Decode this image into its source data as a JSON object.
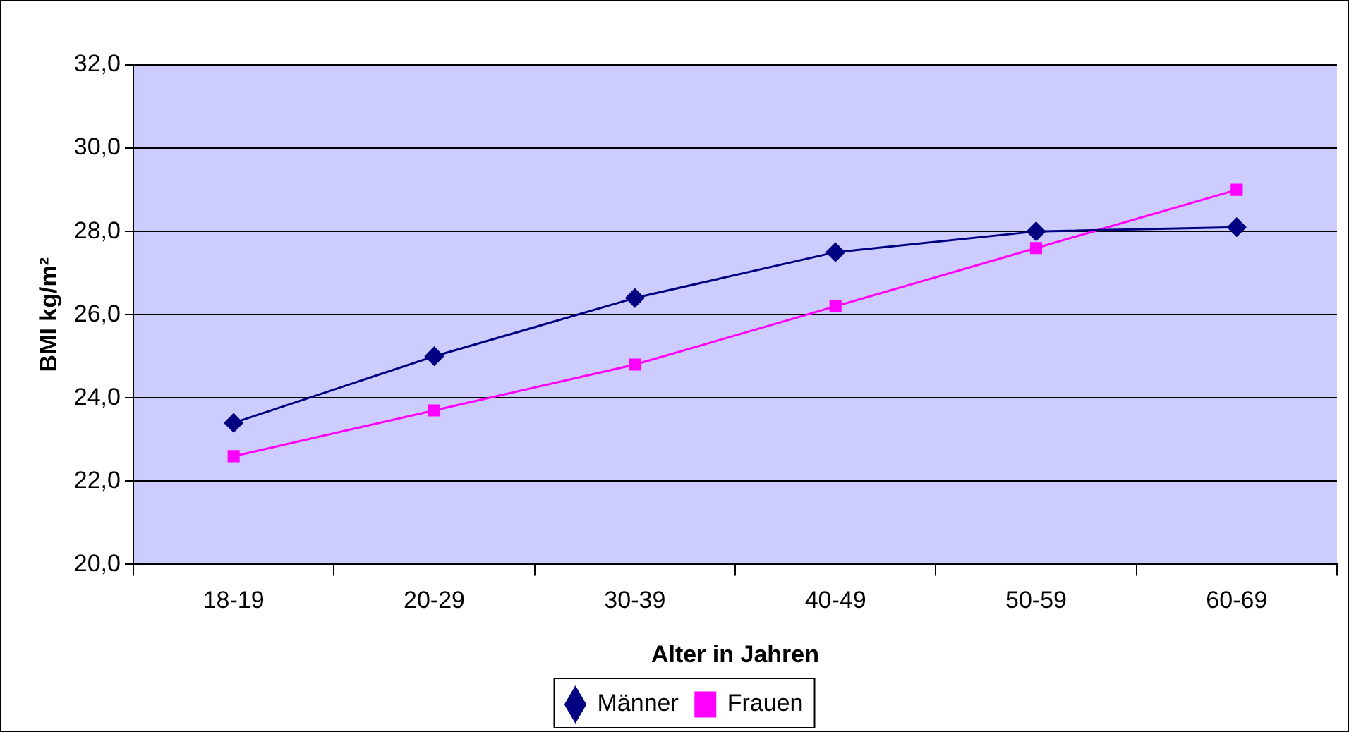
{
  "chart_data": {
    "type": "line",
    "xlabel": "Alter in Jahren",
    "ylabel": "BMI kg/m²",
    "categories": [
      "18-19",
      "20-29",
      "30-39",
      "40-49",
      "50-59",
      "60-69"
    ],
    "series": [
      {
        "name": "Männer",
        "color": "#000080",
        "marker": "diamond",
        "values": [
          23.4,
          25.0,
          26.4,
          27.5,
          28.0,
          28.1
        ]
      },
      {
        "name": "Frauen",
        "color": "#ff00ff",
        "marker": "square",
        "values": [
          22.6,
          23.7,
          24.8,
          26.2,
          27.6,
          29.0
        ]
      }
    ],
    "ylim": [
      20,
      32
    ],
    "yticks": [
      {
        "value": 20,
        "label": "20,0"
      },
      {
        "value": 22,
        "label": "22,0"
      },
      {
        "value": 24,
        "label": "24,0"
      },
      {
        "value": 26,
        "label": "26,0"
      },
      {
        "value": 28,
        "label": "28,0"
      },
      {
        "value": 30,
        "label": "30,0"
      },
      {
        "value": 32,
        "label": "32,0"
      }
    ],
    "grid": "y",
    "legend": "bottom",
    "line_style": "solid"
  }
}
